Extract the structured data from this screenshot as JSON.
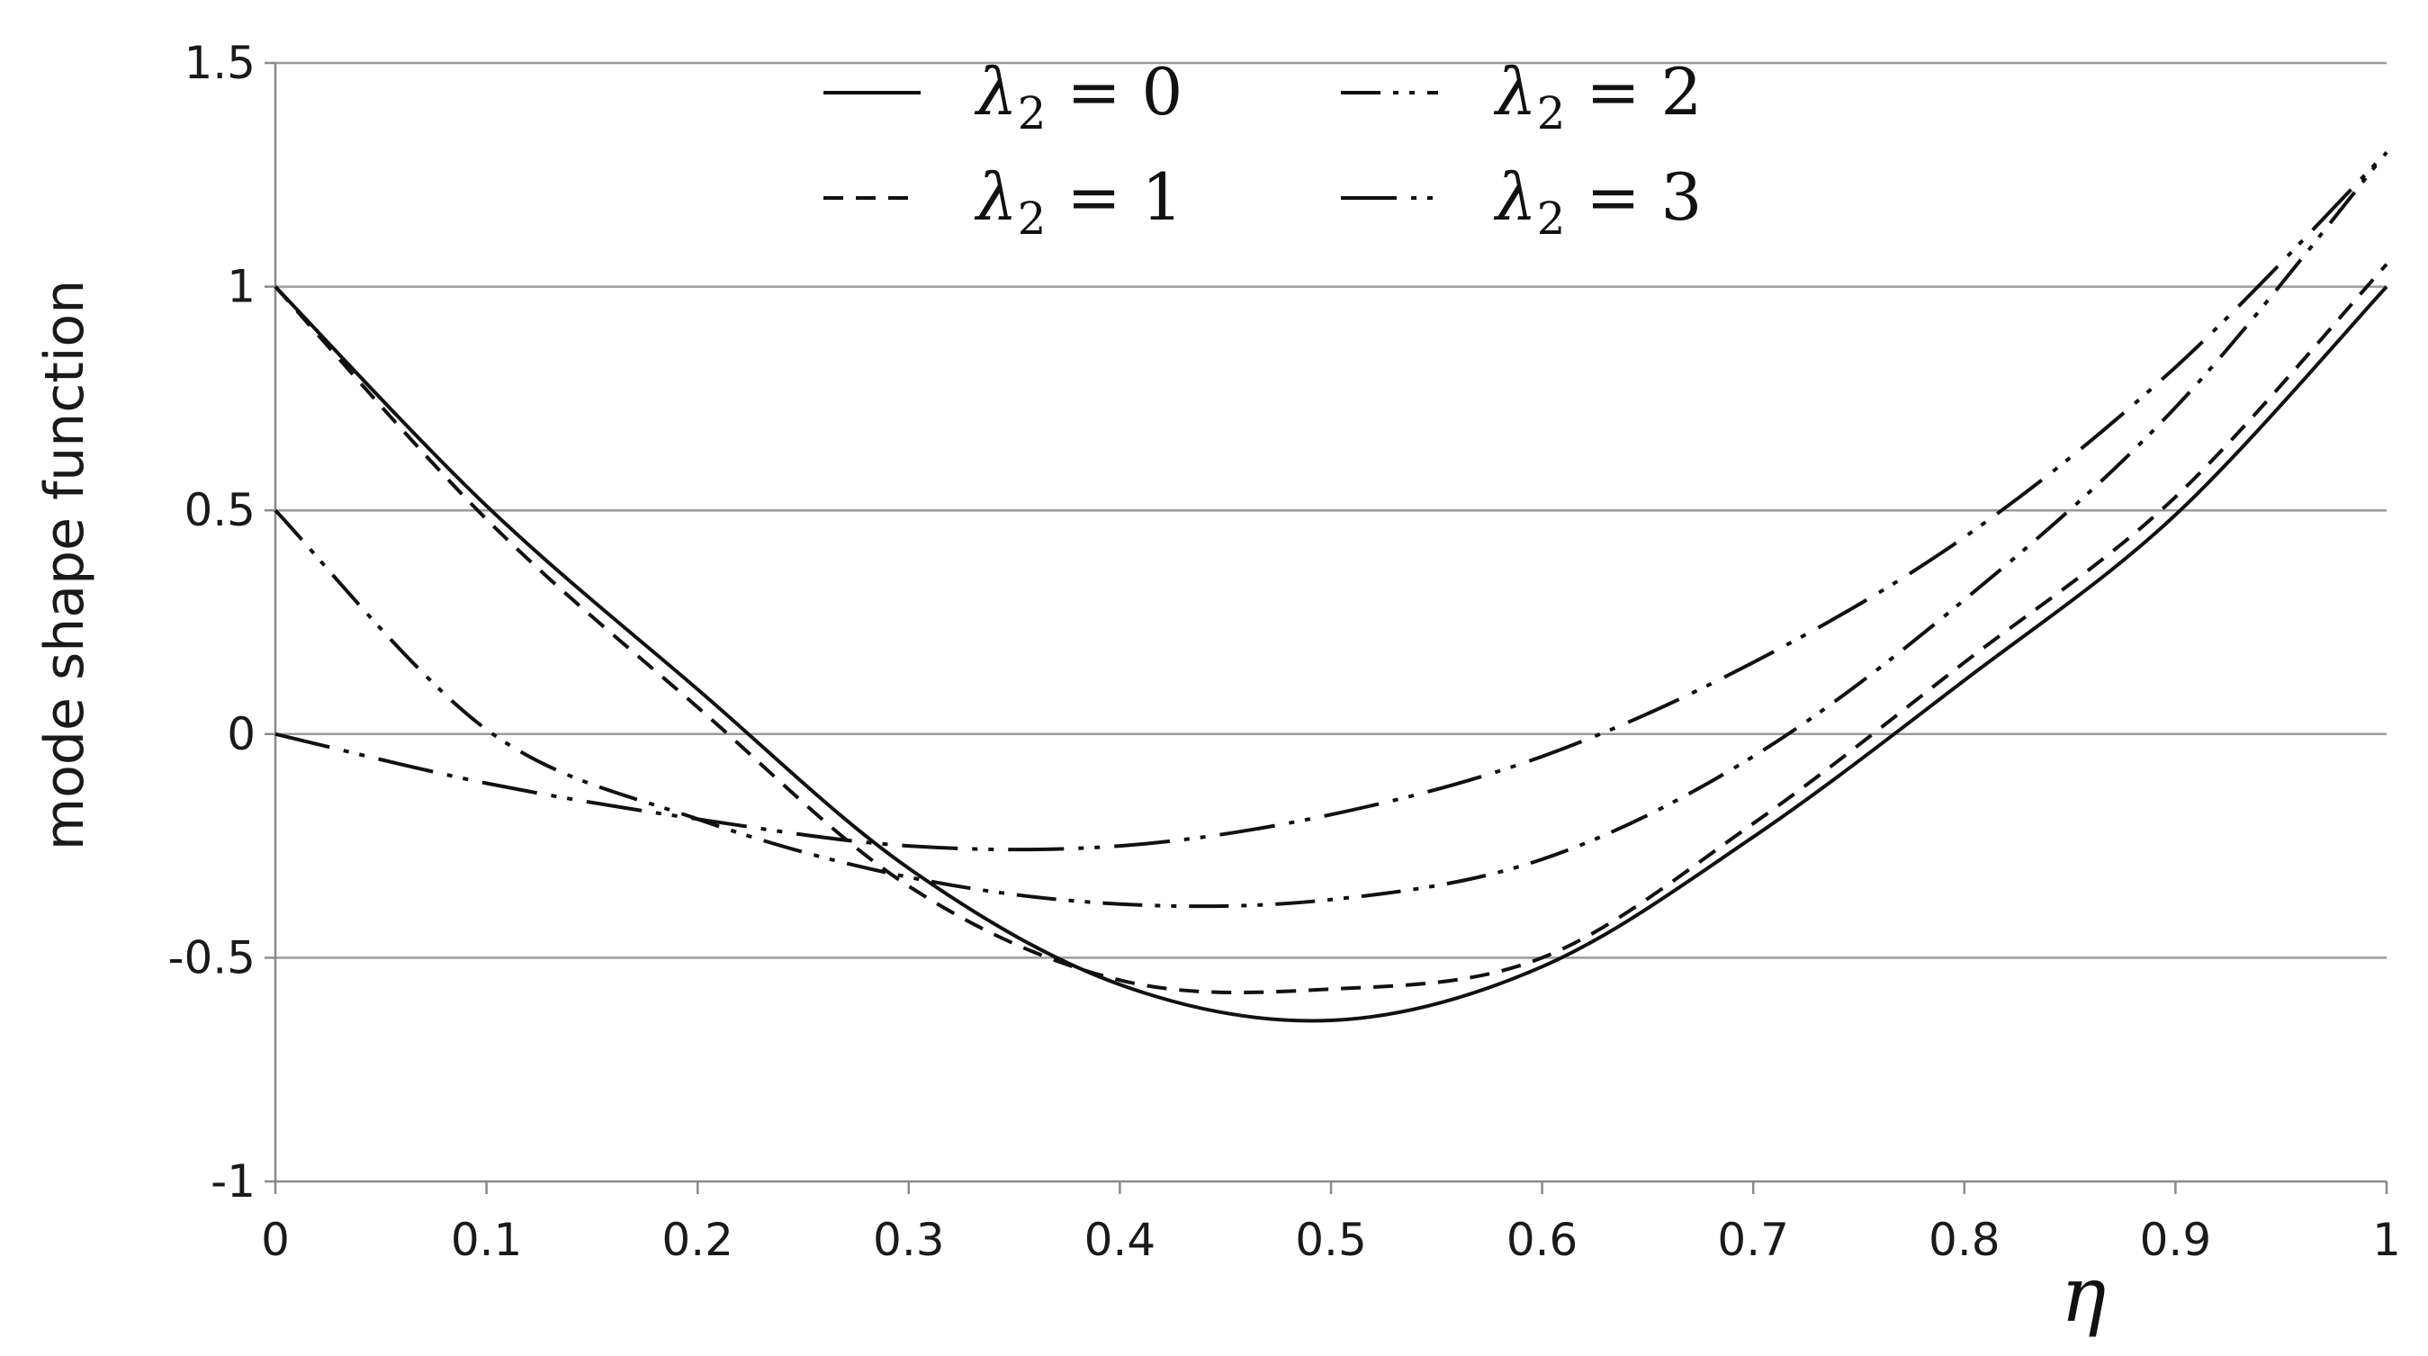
{
  "chart_data": {
    "type": "line",
    "title": "",
    "xlabel": "η",
    "ylabel": "mode shape function",
    "xlim": [
      0,
      1
    ],
    "ylim": [
      -1,
      1.5
    ],
    "xticks": [
      0,
      0.1,
      0.2,
      0.3,
      0.4,
      0.5,
      0.6,
      0.7,
      0.8,
      0.9,
      1
    ],
    "xtick_labels": [
      "0",
      "0.1",
      "0.2",
      "0.3",
      "0.4",
      "0.5",
      "0.6",
      "0.7",
      "0.8",
      "0.9",
      "1"
    ],
    "yticks": [
      -1,
      -0.5,
      0,
      0.5,
      1,
      1.5
    ],
    "ytick_labels": [
      "-1",
      "-0.5",
      "0",
      "0.5",
      "1",
      "1.5"
    ],
    "grid": "horizontal",
    "legend_position": "top-center",
    "x": [
      0,
      0.1,
      0.2,
      0.3,
      0.4,
      0.5,
      0.6,
      0.7,
      0.8,
      0.9,
      1
    ],
    "series": [
      {
        "name": "λ2 = 0",
        "legend_symbol": "λ",
        "legend_subscript": "2",
        "legend_rest": " = 0",
        "dash": "solid",
        "values": [
          1.0,
          0.51,
          0.1,
          -0.3,
          -0.56,
          -0.64,
          -0.52,
          -0.23,
          0.12,
          0.49,
          1.0
        ]
      },
      {
        "name": "λ2 = 1",
        "legend_symbol": "λ",
        "legend_subscript": "2",
        "legend_rest": " = 1",
        "dash": "dashed",
        "values": [
          1.0,
          0.48,
          0.06,
          -0.34,
          -0.55,
          -0.57,
          -0.5,
          -0.2,
          0.16,
          0.53,
          1.05
        ]
      },
      {
        "name": "λ2 = 2",
        "legend_symbol": "λ",
        "legend_subscript": "2",
        "legend_rest": " = 2",
        "dash": "dash-dot-dot",
        "values": [
          0.5,
          0.01,
          -0.19,
          -0.32,
          -0.38,
          -0.37,
          -0.28,
          -0.05,
          0.3,
          0.73,
          1.3
        ]
      },
      {
        "name": "λ2 = 3",
        "legend_symbol": "λ",
        "legend_subscript": "2",
        "legend_rest": " = 3",
        "dash": "dash-dot-dot-long",
        "values": [
          0.0,
          -0.11,
          -0.19,
          -0.25,
          -0.25,
          -0.18,
          -0.05,
          0.16,
          0.44,
          0.82,
          1.3
        ]
      }
    ],
    "colors": {
      "lines": "#111111",
      "grid": "#9a9a9a",
      "axis": "#8a8a8a"
    }
  }
}
